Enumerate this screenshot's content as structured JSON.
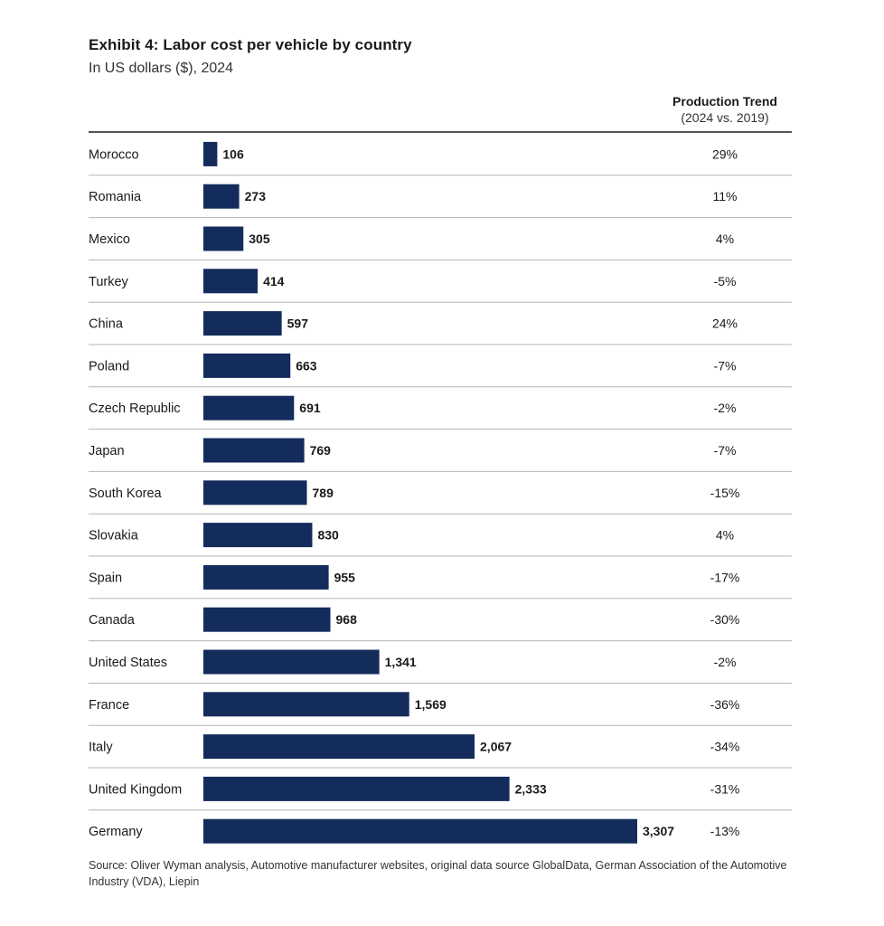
{
  "chart_data": {
    "type": "bar",
    "orientation": "horizontal",
    "title": "Exhibit 4: Labor cost per vehicle by country",
    "subtitle": "In US dollars ($), 2024",
    "trend_header": "Production Trend",
    "trend_subheader": "(2024 vs. 2019)",
    "categories": [
      "Morocco",
      "Romania",
      "Mexico",
      "Turkey",
      "China",
      "Poland",
      "Czech Republic",
      "Japan",
      "South Korea",
      "Slovakia",
      "Spain",
      "Canada",
      "United States",
      "France",
      "Italy",
      "United Kingdom",
      "Germany"
    ],
    "values": [
      106,
      273,
      305,
      414,
      597,
      663,
      691,
      769,
      789,
      830,
      955,
      968,
      1341,
      1569,
      2067,
      2333,
      3307
    ],
    "value_labels": [
      "106",
      "273",
      "305",
      "414",
      "597",
      "663",
      "691",
      "769",
      "789",
      "830",
      "955",
      "968",
      "1,341",
      "1,569",
      "2,067",
      "2,333",
      "3,307"
    ],
    "trend_labels": [
      "29%",
      "11%",
      "4%",
      "-5%",
      "24%",
      "-7%",
      "-2%",
      "-7%",
      "-15%",
      "4%",
      "-17%",
      "-30%",
      "-2%",
      "-36%",
      "-34%",
      "-31%",
      "-13%"
    ],
    "bar_color": "#142c5c",
    "xlim": [
      0,
      3307
    ]
  },
  "source": "Source: Oliver Wyman analysis, Automotive manufacturer websites, original data source GlobalData, German Association of the Automotive Industry (VDA), Liepin"
}
